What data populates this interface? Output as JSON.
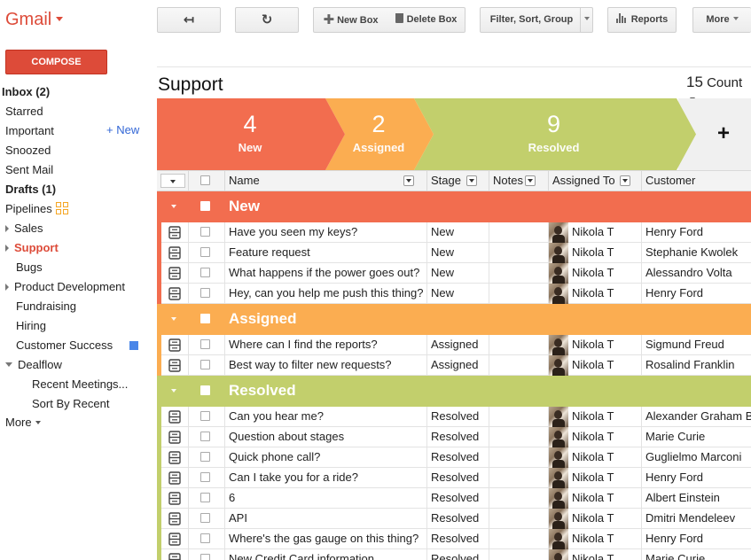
{
  "app": {
    "brand": "Gmail"
  },
  "compose_label": "COMPOSE",
  "nav": {
    "inbox": "Inbox (2)",
    "starred": "Starred",
    "important": "Important",
    "snoozed": "Snoozed",
    "sent": "Sent Mail",
    "drafts": "Drafts (1)",
    "pipelines": "Pipelines",
    "new_link": "+ New",
    "items": [
      "Sales",
      "Support",
      "Bugs",
      "Product Development",
      "Fundraising",
      "Hiring",
      "Customer Success",
      "Dealflow",
      "Recent Meetings...",
      "Sort By Recent"
    ],
    "more": "More"
  },
  "toolbar": {
    "back_glyph": "↤",
    "refresh_glyph": "↻",
    "new_box": "New Box",
    "delete_box": "Delete Box",
    "filter": "Filter, Sort, Group",
    "reports": "Reports",
    "more": "More"
  },
  "pipeline": {
    "title": "Support",
    "count_num": "15",
    "count_label": "Count"
  },
  "stages": [
    {
      "count": "4",
      "label": "New",
      "color": "#f26d4f"
    },
    {
      "count": "2",
      "label": "Assigned",
      "color": "#fbad51"
    },
    {
      "count": "9",
      "label": "Resolved",
      "color": "#c2cf6c"
    }
  ],
  "add_stage_glyph": "+",
  "columns": {
    "name": "Name",
    "stage": "Stage",
    "notes": "Notes",
    "assigned": "Assigned To",
    "customer": "Customer"
  },
  "groups": [
    {
      "label": "New",
      "color": "#f26d4f",
      "rows": [
        {
          "name": "Have you seen my keys?",
          "stage": "New",
          "assigned": "Nikola T",
          "customer": "Henry Ford"
        },
        {
          "name": "Feature request",
          "stage": "New",
          "assigned": "Nikola T",
          "customer": "Stephanie Kwolek"
        },
        {
          "name": "What happens if the power goes out?",
          "stage": "New",
          "assigned": "Nikola T",
          "customer": "Alessandro Volta"
        },
        {
          "name": "Hey, can you help me push this thing?",
          "stage": "New",
          "assigned": "Nikola T",
          "customer": "Henry Ford"
        }
      ]
    },
    {
      "label": "Assigned",
      "color": "#fbad51",
      "rows": [
        {
          "name": "Where can I find the reports?",
          "stage": "Assigned",
          "assigned": "Nikola T",
          "customer": "Sigmund Freud"
        },
        {
          "name": "Best way to filter new requests?",
          "stage": "Assigned",
          "assigned": "Nikola T",
          "customer": "Rosalind Franklin"
        }
      ]
    },
    {
      "label": "Resolved",
      "color": "#c2cf6c",
      "rows": [
        {
          "name": "Can you hear me?",
          "stage": "Resolved",
          "assigned": "Nikola T",
          "customer": "Alexander Graham Bell"
        },
        {
          "name": "Question about stages",
          "stage": "Resolved",
          "assigned": "Nikola T",
          "customer": "Marie Curie"
        },
        {
          "name": "Quick phone call?",
          "stage": "Resolved",
          "assigned": "Nikola T",
          "customer": "Guglielmo Marconi"
        },
        {
          "name": "Can I take you for a ride?",
          "stage": "Resolved",
          "assigned": "Nikola T",
          "customer": "Henry Ford"
        },
        {
          "name": "6",
          "stage": "Resolved",
          "assigned": "Nikola T",
          "customer": "Albert Einstein"
        },
        {
          "name": "API",
          "stage": "Resolved",
          "assigned": "Nikola T",
          "customer": "Dmitri Mendeleev"
        },
        {
          "name": "Where's the gas gauge on this thing?",
          "stage": "Resolved",
          "assigned": "Nikola T",
          "customer": "Henry Ford"
        },
        {
          "name": "New Credit Card information",
          "stage": "Resolved",
          "assigned": "Nikola T",
          "customer": "Marie Curie"
        }
      ]
    }
  ]
}
